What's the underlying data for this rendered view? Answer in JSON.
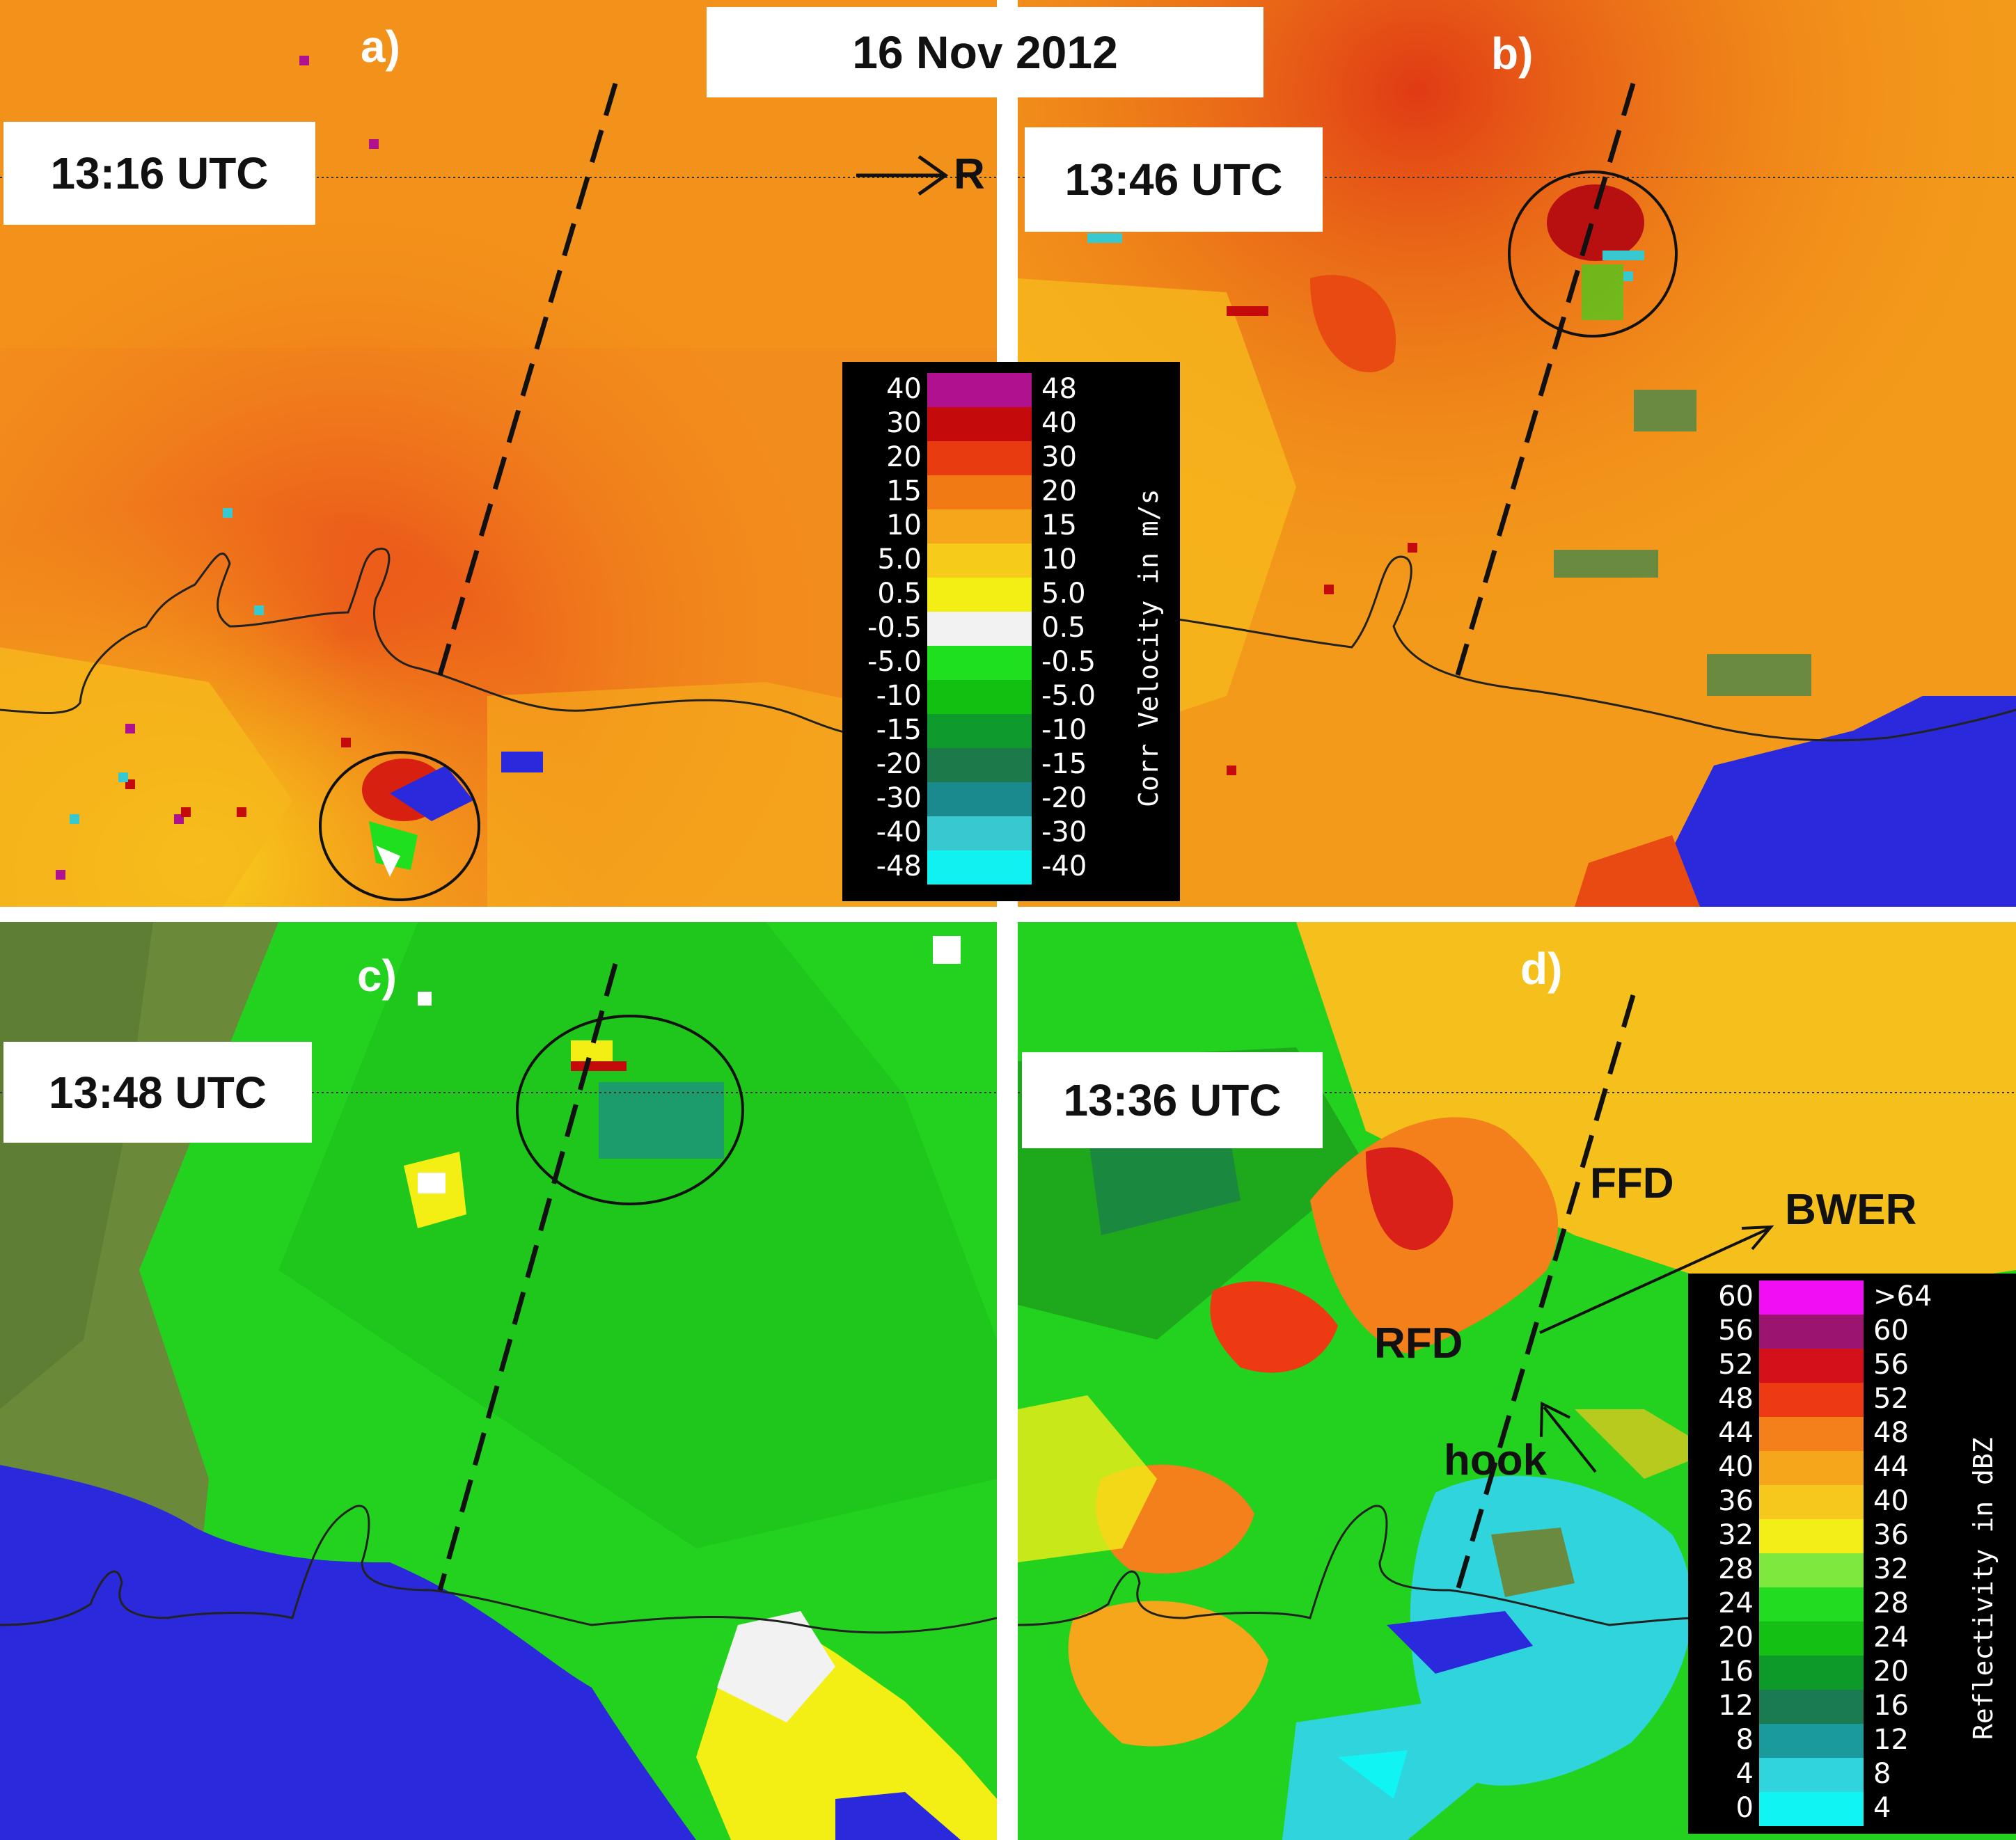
{
  "date": "16 Nov 2012",
  "panels": [
    {
      "letter": "a)",
      "time": "13:16 UTC"
    },
    {
      "letter": "b)",
      "time": "13:46 UTC"
    },
    {
      "letter": "c)",
      "time": "13:48 UTC"
    },
    {
      "letter": "d)",
      "time": "13:36 UTC"
    }
  ],
  "annotations": {
    "radar": "R",
    "ffd": "FFD",
    "bwer": "BWER",
    "rfd": "RFD",
    "hook": "hook"
  },
  "velocity_colorbar": {
    "unit": "Corr Velocity in m/s",
    "left_values": [
      "40",
      "30",
      "20",
      "15",
      "10",
      "5.0",
      "0.5",
      "-0.5",
      "-5.0",
      "-10",
      "-15",
      "-20",
      "-30",
      "-40",
      "-48"
    ],
    "right_values": [
      "48",
      "40",
      "30",
      "20",
      "15",
      "10",
      "5.0",
      "0.5",
      "-0.5",
      "-5.0",
      "-10",
      "-15",
      "-20",
      "-30",
      "-40"
    ],
    "colors": [
      "#b0128f",
      "#c40a0a",
      "#e83c10",
      "#f27a14",
      "#f6a61a",
      "#f7cb1a",
      "#f3ee14",
      "#f2f2f2",
      "#1ee01e",
      "#12c012",
      "#0e9a2c",
      "#1c7a4a",
      "#1b8a8e",
      "#38c8d0",
      "#10f2f2"
    ]
  },
  "reflectivity_colorbar": {
    "unit": "Reflectivity in dBZ",
    "left_values": [
      "60",
      "56",
      "52",
      "48",
      "44",
      "40",
      "36",
      "32",
      "28",
      "24",
      "20",
      "16",
      "12",
      "8",
      "4",
      "0"
    ],
    "right_values": [
      ">64",
      "60",
      "56",
      "52",
      "48",
      "44",
      "40",
      "36",
      "32",
      "28",
      "24",
      "20",
      "16",
      "12",
      "8",
      "4"
    ],
    "colors": [
      "#f20ef2",
      "#9a1470",
      "#d4101a",
      "#ee3a12",
      "#f3801a",
      "#f6a61a",
      "#f6c81e",
      "#f3ee18",
      "#7ee83e",
      "#22dc22",
      "#14c014",
      "#0e9a28",
      "#1a7a50",
      "#1a9a9a",
      "#30d4dc",
      "#10f4f4"
    ]
  }
}
